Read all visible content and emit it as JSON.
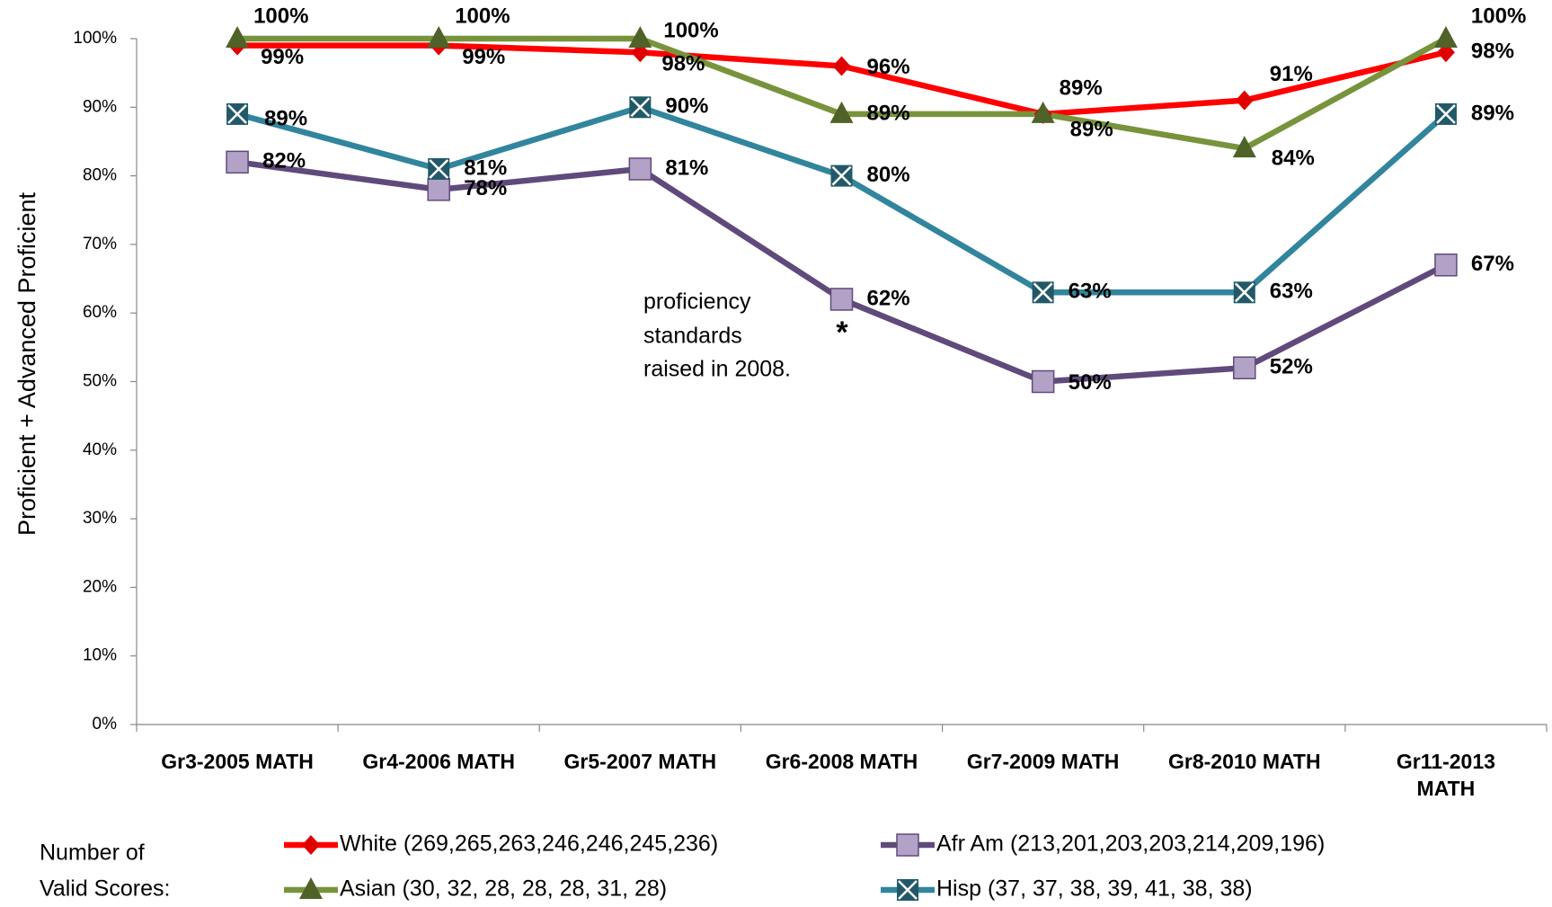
{
  "chart_data": {
    "type": "line",
    "y_axis_label": "Proficient + Advanced Proficient",
    "categories": [
      "Gr3-2005 MATH",
      "Gr4-2006 MATH",
      "Gr5-2007 MATH",
      "Gr6-2008 MATH",
      "Gr7-2009 MATH",
      "Gr8-2010 MATH",
      "Gr11-2013 MATH"
    ],
    "series": [
      {
        "name": "White (269,265,263,246,246,245,236)",
        "color": "#ff0000",
        "marker_color": "#e00000",
        "marker": "diamond",
        "values": [
          99,
          99,
          98,
          96,
          89,
          91,
          98
        ],
        "value_labels": [
          "99%",
          "99%",
          "98%",
          "96%",
          "89%",
          "91%",
          "98%"
        ]
      },
      {
        "name": "Afr Am (213,201,203,203,214,209,196)",
        "color": "#604a7b",
        "marker_color": "#b3a2c7",
        "marker": "square",
        "values": [
          82,
          78,
          81,
          62,
          50,
          52,
          67
        ],
        "value_labels": [
          "82%",
          "78%",
          "81%",
          "62%",
          "50%",
          "52%",
          "67%"
        ]
      },
      {
        "name": "Asian (30, 32, 28, 28, 28, 31, 28)",
        "color": "#77933c",
        "marker_color": "#4f6228",
        "marker": "triangle",
        "values": [
          100,
          100,
          100,
          89,
          89,
          84,
          100
        ],
        "value_labels": [
          "100%",
          "100%",
          "100%",
          "89%",
          "89%",
          "84%",
          "100%"
        ]
      },
      {
        "name": "Hisp (37, 37, 38, 39, 41, 38, 38)",
        "color": "#31859c",
        "marker_color": "#215968",
        "marker": "x",
        "values": [
          89,
          81,
          90,
          80,
          63,
          63,
          89
        ],
        "value_labels": [
          "89%",
          "81%",
          "90%",
          "80%",
          "63%",
          "63%",
          "89%"
        ]
      }
    ],
    "legend_title": [
      "Number of",
      "Valid Scores:"
    ],
    "annotation": [
      "proficiency",
      "standards",
      "raised in 2008."
    ],
    "annotation_mark": "*",
    "ylim": [
      0,
      100
    ],
    "yticks": [
      {
        "value": 0,
        "label": "0%"
      },
      {
        "value": 10,
        "label": "10%"
      },
      {
        "value": 20,
        "label": "20%"
      },
      {
        "value": 30,
        "label": "30%"
      },
      {
        "value": 40,
        "label": "40%"
      },
      {
        "value": 50,
        "label": "50%"
      },
      {
        "value": 60,
        "label": "60%"
      },
      {
        "value": 70,
        "label": "70%"
      },
      {
        "value": 80,
        "label": "80%"
      },
      {
        "value": 90,
        "label": "90%"
      },
      {
        "value": 100,
        "label": "100%"
      }
    ],
    "grid": false
  }
}
